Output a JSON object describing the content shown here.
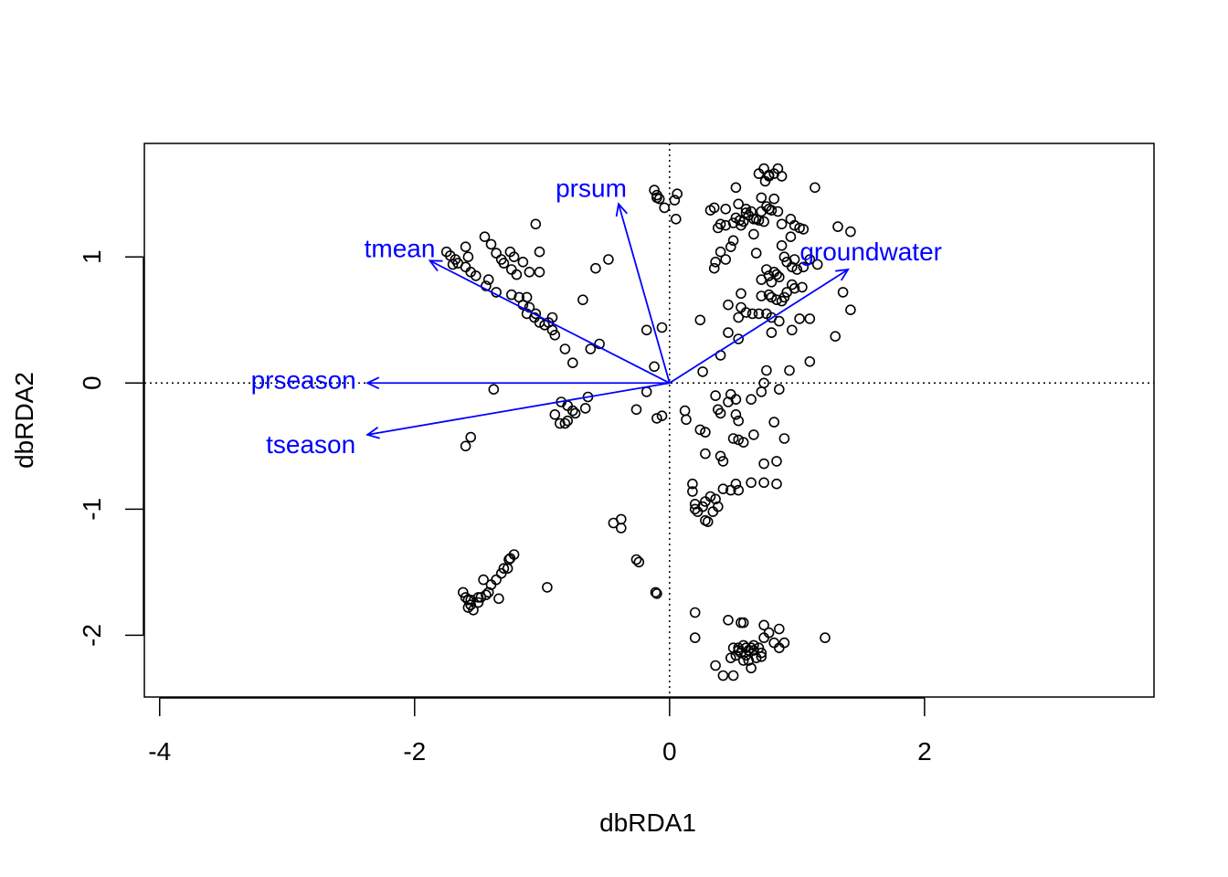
{
  "chart_data": {
    "type": "scatter",
    "title": "",
    "xlabel": "dbRDA1",
    "ylabel": "dbRDA2",
    "xlim": [
      -4.12,
      3.8
    ],
    "ylim": [
      -2.49,
      1.9
    ],
    "x_ticks": [
      {
        "value": -4,
        "label": "-4"
      },
      {
        "value": -2,
        "label": "-2"
      },
      {
        "value": 0,
        "label": "0"
      },
      {
        "value": 2,
        "label": "2"
      }
    ],
    "y_ticks": [
      {
        "value": -2,
        "label": "-2"
      },
      {
        "value": -1,
        "label": "-1"
      },
      {
        "value": 0,
        "label": "0"
      },
      {
        "value": 1,
        "label": "1"
      }
    ],
    "reference_lines": {
      "x": 0,
      "y": 0,
      "style": "dotted"
    },
    "grid": false,
    "legend": "none",
    "colors": {
      "points": "#000000",
      "vectors": "#0000ff",
      "axes": "#000000"
    },
    "vectors": [
      {
        "name": "prsum",
        "x": -0.4,
        "y": 1.42
      },
      {
        "name": "tmean",
        "x": -1.88,
        "y": 0.97
      },
      {
        "name": "groundwater",
        "x": 1.4,
        "y": 0.9
      },
      {
        "name": "prseason",
        "x": -2.37,
        "y": 0.0
      },
      {
        "name": "tseason",
        "x": -2.37,
        "y": -0.41
      }
    ],
    "series": [
      {
        "points": [
          [
            -1.75,
            1.04
          ],
          [
            -1.72,
            1.01
          ],
          [
            -1.68,
            0.98
          ],
          [
            -1.66,
            0.95
          ],
          [
            -1.7,
            0.94
          ],
          [
            -1.6,
            1.08
          ],
          [
            -1.58,
            1.0
          ],
          [
            -1.6,
            0.92
          ],
          [
            -1.56,
            0.88
          ],
          [
            -1.52,
            0.85
          ],
          [
            -1.45,
            1.16
          ],
          [
            -1.4,
            1.1
          ],
          [
            -1.36,
            1.03
          ],
          [
            -1.32,
            0.98
          ],
          [
            -1.3,
            0.95
          ],
          [
            -1.25,
            1.04
          ],
          [
            -1.22,
            1.0
          ],
          [
            -1.24,
            0.9
          ],
          [
            -1.2,
            0.86
          ],
          [
            -1.15,
            0.96
          ],
          [
            -1.05,
            1.26
          ],
          [
            -1.02,
            1.04
          ],
          [
            -1.1,
            0.88
          ],
          [
            -1.02,
            0.88
          ],
          [
            -1.42,
            0.82
          ],
          [
            -1.44,
            0.77
          ],
          [
            -1.36,
            0.72
          ],
          [
            -1.24,
            0.7
          ],
          [
            -1.18,
            0.68
          ],
          [
            -1.12,
            0.68
          ],
          [
            -1.15,
            0.62
          ],
          [
            -1.12,
            0.55
          ],
          [
            -1.06,
            0.52
          ],
          [
            -1.02,
            0.48
          ],
          [
            -0.98,
            0.46
          ],
          [
            -0.95,
            0.48
          ],
          [
            -0.92,
            0.52
          ],
          [
            -0.92,
            0.42
          ],
          [
            -0.9,
            0.38
          ],
          [
            -1.05,
            0.55
          ],
          [
            -1.1,
            0.6
          ],
          [
            -0.82,
            0.27
          ],
          [
            -0.76,
            0.16
          ],
          [
            -0.62,
            0.27
          ],
          [
            -0.55,
            0.31
          ],
          [
            -0.68,
            0.66
          ],
          [
            -0.58,
            0.91
          ],
          [
            -0.48,
            0.98
          ],
          [
            -0.18,
            0.42
          ],
          [
            -0.06,
            0.44
          ],
          [
            -0.12,
            0.13
          ],
          [
            -1.38,
            -0.05
          ],
          [
            -1.56,
            -0.43
          ],
          [
            -1.6,
            -0.5
          ],
          [
            -0.85,
            -0.15
          ],
          [
            -0.8,
            -0.18
          ],
          [
            -0.76,
            -0.22
          ],
          [
            -0.74,
            -0.24
          ],
          [
            -0.64,
            -0.11
          ],
          [
            -0.66,
            -0.2
          ],
          [
            -0.9,
            -0.25
          ],
          [
            -0.86,
            -0.32
          ],
          [
            -0.82,
            -0.32
          ],
          [
            -0.8,
            -0.3
          ],
          [
            -0.26,
            -0.21
          ],
          [
            -0.18,
            -0.07
          ],
          [
            -0.1,
            -0.28
          ],
          [
            -0.06,
            -0.26
          ],
          [
            0.12,
            -0.22
          ],
          [
            0.13,
            -0.29
          ],
          [
            -0.44,
            -1.11
          ],
          [
            -0.38,
            -1.08
          ],
          [
            -0.38,
            -1.15
          ],
          [
            -0.26,
            -1.4
          ],
          [
            -0.24,
            -1.42
          ],
          [
            -0.1,
            -1.67
          ],
          [
            -0.11,
            -1.66
          ],
          [
            -0.96,
            -1.62
          ],
          [
            -1.62,
            -1.66
          ],
          [
            -1.6,
            -1.7
          ],
          [
            -1.58,
            -1.72
          ],
          [
            -1.56,
            -1.76
          ],
          [
            -1.58,
            -1.78
          ],
          [
            -1.54,
            -1.8
          ],
          [
            -1.5,
            -1.74
          ],
          [
            -1.48,
            -1.7
          ],
          [
            -1.44,
            -1.68
          ],
          [
            -1.42,
            -1.66
          ],
          [
            -1.4,
            -1.6
          ],
          [
            -1.46,
            -1.56
          ],
          [
            -1.36,
            -1.56
          ],
          [
            -1.32,
            -1.51
          ],
          [
            -1.3,
            -1.47
          ],
          [
            -1.27,
            -1.47
          ],
          [
            -1.25,
            -1.39
          ],
          [
            -1.22,
            -1.36
          ],
          [
            -1.26,
            -1.4
          ],
          [
            -1.34,
            -1.71
          ],
          [
            -1.56,
            -1.72
          ],
          [
            -1.5,
            -1.7
          ],
          [
            -0.12,
            1.53
          ],
          [
            -0.1,
            1.49
          ],
          [
            -0.08,
            1.46
          ],
          [
            -0.04,
            1.39
          ],
          [
            0.04,
            1.45
          ],
          [
            0.06,
            1.5
          ],
          [
            0.05,
            1.3
          ],
          [
            -0.1,
            1.47
          ],
          [
            0.32,
            1.37
          ],
          [
            0.35,
            1.39
          ],
          [
            0.44,
            1.38
          ],
          [
            0.4,
            1.26
          ],
          [
            0.38,
            1.23
          ],
          [
            0.44,
            1.25
          ],
          [
            0.5,
            1.27
          ],
          [
            0.52,
            1.31
          ],
          [
            0.55,
            1.29
          ],
          [
            0.58,
            1.28
          ],
          [
            0.6,
            1.35
          ],
          [
            0.64,
            1.36
          ],
          [
            0.66,
            1.3
          ],
          [
            0.7,
            1.29
          ],
          [
            0.74,
            1.28
          ],
          [
            0.76,
            1.4
          ],
          [
            0.78,
            1.38
          ],
          [
            0.82,
            1.46
          ],
          [
            0.8,
            1.37
          ],
          [
            0.85,
            1.36
          ],
          [
            0.88,
            1.26
          ],
          [
            0.95,
            1.3
          ],
          [
            0.98,
            1.25
          ],
          [
            1.02,
            1.23
          ],
          [
            1.05,
            1.22
          ],
          [
            1.14,
            1.55
          ],
          [
            0.72,
            1.47
          ],
          [
            0.75,
            1.6
          ],
          [
            0.74,
            1.7
          ],
          [
            0.78,
            1.65
          ],
          [
            0.82,
            1.66
          ],
          [
            0.85,
            1.7
          ],
          [
            0.88,
            1.64
          ],
          [
            0.7,
            1.66
          ],
          [
            0.78,
            1.64
          ],
          [
            0.52,
            1.55
          ],
          [
            0.54,
            1.42
          ],
          [
            0.6,
            1.38
          ],
          [
            0.62,
            1.33
          ],
          [
            0.68,
            1.3
          ],
          [
            0.72,
            1.36
          ],
          [
            0.56,
            1.25
          ],
          [
            0.66,
            1.18
          ],
          [
            0.5,
            1.13
          ],
          [
            0.48,
            1.08
          ],
          [
            0.4,
            1.04
          ],
          [
            0.44,
            0.98
          ],
          [
            0.36,
            0.96
          ],
          [
            0.35,
            0.91
          ],
          [
            0.68,
            1.03
          ],
          [
            0.88,
            1.09
          ],
          [
            0.95,
            1.16
          ],
          [
            0.98,
            0.98
          ],
          [
            0.9,
            1.0
          ],
          [
            0.96,
            0.92
          ],
          [
            1.0,
            0.9
          ],
          [
            0.92,
            0.96
          ],
          [
            1.05,
            0.92
          ],
          [
            1.1,
            0.98
          ],
          [
            1.16,
            0.94
          ],
          [
            0.76,
            0.9
          ],
          [
            0.78,
            0.85
          ],
          [
            0.82,
            0.88
          ],
          [
            0.84,
            0.86
          ],
          [
            0.72,
            0.82
          ],
          [
            0.8,
            0.8
          ],
          [
            0.86,
            0.84
          ],
          [
            0.92,
            0.72
          ],
          [
            0.96,
            0.78
          ],
          [
            0.98,
            0.75
          ],
          [
            1.04,
            0.76
          ],
          [
            0.78,
            0.7
          ],
          [
            0.8,
            0.68
          ],
          [
            0.84,
            0.66
          ],
          [
            0.72,
            0.69
          ],
          [
            0.9,
            0.68
          ],
          [
            0.88,
            0.65
          ],
          [
            0.56,
            0.6
          ],
          [
            0.6,
            0.56
          ],
          [
            0.54,
            0.52
          ],
          [
            0.65,
            0.55
          ],
          [
            0.7,
            0.55
          ],
          [
            0.76,
            0.55
          ],
          [
            0.8,
            0.52
          ],
          [
            0.86,
            0.49
          ],
          [
            0.46,
            0.62
          ],
          [
            0.56,
            0.71
          ],
          [
            1.02,
            0.51
          ],
          [
            1.1,
            0.51
          ],
          [
            0.24,
            0.5
          ],
          [
            0.46,
            0.4
          ],
          [
            0.4,
            0.22
          ],
          [
            0.54,
            0.35
          ],
          [
            0.26,
            0.09
          ],
          [
            0.8,
            0.4
          ],
          [
            0.96,
            0.42
          ],
          [
            1.36,
            0.72
          ],
          [
            1.42,
            0.58
          ],
          [
            1.32,
            1.24
          ],
          [
            1.42,
            1.2
          ],
          [
            1.3,
            0.37
          ],
          [
            1.1,
            0.17
          ],
          [
            0.76,
            0.1
          ],
          [
            0.94,
            0.1
          ],
          [
            0.74,
            0.0
          ],
          [
            0.72,
            -0.07
          ],
          [
            0.64,
            -0.13
          ],
          [
            0.86,
            -0.05
          ],
          [
            0.52,
            -0.13
          ],
          [
            0.48,
            -0.09
          ],
          [
            0.46,
            -0.15
          ],
          [
            0.36,
            -0.1
          ],
          [
            0.38,
            -0.21
          ],
          [
            0.4,
            -0.24
          ],
          [
            0.52,
            -0.25
          ],
          [
            0.54,
            -0.3
          ],
          [
            0.24,
            -0.37
          ],
          [
            0.28,
            -0.39
          ],
          [
            0.5,
            -0.44
          ],
          [
            0.54,
            -0.45
          ],
          [
            0.58,
            -0.47
          ],
          [
            0.66,
            -0.41
          ],
          [
            0.82,
            -0.31
          ],
          [
            0.84,
            -0.62
          ],
          [
            0.9,
            -0.44
          ],
          [
            0.74,
            -0.64
          ],
          [
            0.4,
            -0.58
          ],
          [
            0.42,
            -0.62
          ],
          [
            0.28,
            -0.56
          ],
          [
            0.64,
            -0.79
          ],
          [
            0.74,
            -0.79
          ],
          [
            0.84,
            -0.8
          ],
          [
            0.18,
            -0.8
          ],
          [
            0.18,
            -0.86
          ],
          [
            0.2,
            -0.96
          ],
          [
            0.22,
            -1.02
          ],
          [
            0.2,
            -1.0
          ],
          [
            0.26,
            -0.98
          ],
          [
            0.28,
            -0.94
          ],
          [
            0.32,
            -0.9
          ],
          [
            0.36,
            -0.92
          ],
          [
            0.42,
            -0.84
          ],
          [
            0.48,
            -0.85
          ],
          [
            0.52,
            -0.8
          ],
          [
            0.54,
            -0.85
          ],
          [
            0.38,
            -0.98
          ],
          [
            0.34,
            -1.02
          ],
          [
            0.28,
            -1.09
          ],
          [
            0.3,
            -1.1
          ],
          [
            0.2,
            -1.82
          ],
          [
            0.2,
            -2.02
          ],
          [
            0.46,
            -1.88
          ],
          [
            0.56,
            -1.9
          ],
          [
            0.58,
            -1.9
          ],
          [
            0.74,
            -1.92
          ],
          [
            0.78,
            -1.98
          ],
          [
            0.86,
            -1.95
          ],
          [
            0.82,
            -2.06
          ],
          [
            0.74,
            -2.02
          ],
          [
            0.9,
            -2.06
          ],
          [
            0.86,
            -2.1
          ],
          [
            0.5,
            -2.1
          ],
          [
            0.54,
            -2.1
          ],
          [
            0.58,
            -2.08
          ],
          [
            0.6,
            -2.1
          ],
          [
            0.62,
            -2.12
          ],
          [
            0.64,
            -2.1
          ],
          [
            0.66,
            -2.12
          ],
          [
            0.7,
            -2.1
          ],
          [
            0.72,
            -2.14
          ],
          [
            0.56,
            -2.14
          ],
          [
            0.6,
            -2.16
          ],
          [
            0.52,
            -2.16
          ],
          [
            0.48,
            -2.18
          ],
          [
            0.68,
            -2.18
          ],
          [
            0.72,
            -2.17
          ],
          [
            0.62,
            -2.2
          ],
          [
            0.64,
            -2.26
          ],
          [
            0.58,
            -2.2
          ],
          [
            0.5,
            -2.32
          ],
          [
            0.42,
            -2.32
          ],
          [
            0.36,
            -2.24
          ],
          [
            1.22,
            -2.02
          ],
          [
            0.54,
            -2.12
          ],
          [
            0.66,
            -2.08
          ]
        ]
      }
    ]
  }
}
